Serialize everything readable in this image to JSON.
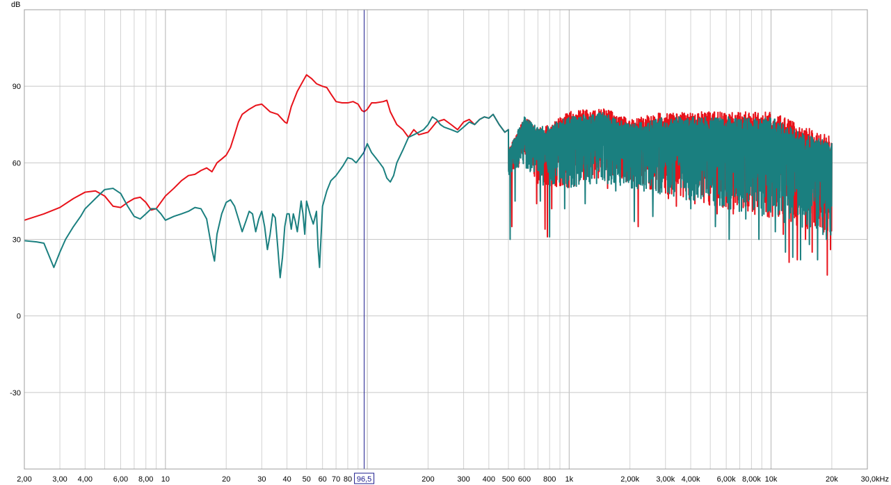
{
  "chart_data": {
    "type": "line",
    "title": "",
    "xlabel": "",
    "ylabel": "dB",
    "x_scale": "log",
    "xlim": [
      2,
      30000
    ],
    "ylim": [
      -60,
      120
    ],
    "grid": true,
    "x_ticks": [
      {
        "value": 2,
        "label": "2,00"
      },
      {
        "value": 3,
        "label": "3,00"
      },
      {
        "value": 4,
        "label": "4,00"
      },
      {
        "value": 6,
        "label": "6,00"
      },
      {
        "value": 8,
        "label": "8,00"
      },
      {
        "value": 10,
        "label": "10"
      },
      {
        "value": 20,
        "label": "20"
      },
      {
        "value": 30,
        "label": "30"
      },
      {
        "value": 40,
        "label": "40"
      },
      {
        "value": 50,
        "label": "50"
      },
      {
        "value": 60,
        "label": "60"
      },
      {
        "value": 70,
        "label": "70"
      },
      {
        "value": 80,
        "label": "80"
      },
      {
        "value": 200,
        "label": "200"
      },
      {
        "value": 300,
        "label": "300"
      },
      {
        "value": 400,
        "label": "400"
      },
      {
        "value": 500,
        "label": "500"
      },
      {
        "value": 600,
        "label": "600"
      },
      {
        "value": 800,
        "label": "800"
      },
      {
        "value": 1000,
        "label": "1k"
      },
      {
        "value": 2000,
        "label": "2,00k"
      },
      {
        "value": 3000,
        "label": "3,00k"
      },
      {
        "value": 4000,
        "label": "4,00k"
      },
      {
        "value": 6000,
        "label": "6,00k"
      },
      {
        "value": 8000,
        "label": "8,00k"
      },
      {
        "value": 10000,
        "label": "10k"
      },
      {
        "value": 20000,
        "label": "20k"
      },
      {
        "value": 30000,
        "label": "30,0kHz"
      }
    ],
    "y_ticks": [
      {
        "value": 90,
        "label": "90"
      },
      {
        "value": 60,
        "label": "60"
      },
      {
        "value": 30,
        "label": "30"
      },
      {
        "value": 0,
        "label": "0"
      },
      {
        "value": -30,
        "label": "-30"
      }
    ],
    "cursor": {
      "value": 96.5,
      "label": "96,5",
      "color": "#1a1a8c"
    },
    "series": [
      {
        "color": "#e8121a",
        "noise_from": 500,
        "points": [
          [
            2,
            37.5
          ],
          [
            2.5,
            40
          ],
          [
            3,
            42.5
          ],
          [
            3.5,
            46
          ],
          [
            4,
            48.5
          ],
          [
            4.5,
            49
          ],
          [
            5,
            47
          ],
          [
            5.5,
            43
          ],
          [
            6,
            42.5
          ],
          [
            6.5,
            44.5
          ],
          [
            7,
            46
          ],
          [
            7.5,
            46.5
          ],
          [
            8,
            44.5
          ],
          [
            8.5,
            41.5
          ],
          [
            9,
            42
          ],
          [
            10,
            47
          ],
          [
            11,
            50
          ],
          [
            12,
            53
          ],
          [
            13,
            55
          ],
          [
            14,
            55.5
          ],
          [
            15,
            57
          ],
          [
            16,
            58
          ],
          [
            17,
            56.5
          ],
          [
            18,
            60
          ],
          [
            19,
            61.5
          ],
          [
            20,
            63
          ],
          [
            21,
            66
          ],
          [
            22,
            71
          ],
          [
            23,
            76
          ],
          [
            24,
            79
          ],
          [
            26,
            81
          ],
          [
            28,
            82.5
          ],
          [
            30,
            83
          ],
          [
            33,
            80
          ],
          [
            36,
            79
          ],
          [
            39,
            76
          ],
          [
            40,
            75.5
          ],
          [
            42,
            82
          ],
          [
            45,
            88
          ],
          [
            48,
            92
          ],
          [
            50,
            94.5
          ],
          [
            53,
            93
          ],
          [
            56,
            91
          ],
          [
            60,
            90
          ],
          [
            63,
            89.5
          ],
          [
            66,
            87
          ],
          [
            70,
            84
          ],
          [
            75,
            83.5
          ],
          [
            80,
            83.5
          ],
          [
            85,
            84
          ],
          [
            90,
            83
          ],
          [
            94,
            80.5
          ],
          [
            96.5,
            80
          ],
          [
            100,
            81
          ],
          [
            105,
            83.5
          ],
          [
            110,
            83.5
          ],
          [
            120,
            84
          ],
          [
            125,
            84.5
          ],
          [
            130,
            80
          ],
          [
            140,
            75
          ],
          [
            150,
            73
          ],
          [
            160,
            70
          ],
          [
            170,
            73
          ],
          [
            180,
            71
          ],
          [
            200,
            72
          ],
          [
            210,
            74
          ],
          [
            220,
            76
          ],
          [
            240,
            77
          ],
          [
            260,
            75
          ],
          [
            280,
            73
          ],
          [
            300,
            76
          ],
          [
            320,
            77
          ],
          [
            340,
            75
          ],
          [
            360,
            77
          ],
          [
            380,
            78
          ],
          [
            400,
            77.5
          ],
          [
            420,
            79
          ],
          [
            450,
            75
          ],
          [
            480,
            72
          ],
          [
            500,
            73
          ]
        ],
        "noise_peaks": [
          [
            500,
            65
          ],
          [
            600,
            78
          ],
          [
            700,
            74
          ],
          [
            800,
            75
          ],
          [
            1000,
            80
          ],
          [
            1500,
            82
          ],
          [
            2000,
            77
          ],
          [
            3000,
            80
          ],
          [
            4000,
            80
          ],
          [
            6000,
            80
          ],
          [
            8000,
            80
          ],
          [
            10000,
            80
          ],
          [
            14000,
            75
          ],
          [
            20000,
            70
          ]
        ],
        "noise_floors": [
          [
            500,
            55
          ],
          [
            600,
            60
          ],
          [
            700,
            52
          ],
          [
            800,
            50
          ],
          [
            1000,
            50
          ],
          [
            1500,
            55
          ],
          [
            2000,
            52
          ],
          [
            3000,
            48
          ],
          [
            4000,
            45
          ],
          [
            6000,
            42
          ],
          [
            8000,
            40
          ],
          [
            10000,
            38
          ],
          [
            14000,
            35
          ],
          [
            20000,
            30
          ]
        ],
        "noise_dips": [
          [
            520,
            35
          ],
          [
            690,
            44
          ],
          [
            760,
            34
          ],
          [
            780,
            31
          ],
          [
            820,
            42
          ],
          [
            1550,
            50
          ],
          [
            2200,
            35
          ],
          [
            3100,
            46
          ],
          [
            3400,
            43
          ],
          [
            4200,
            44
          ],
          [
            5400,
            40
          ],
          [
            6500,
            40
          ],
          [
            8100,
            41
          ],
          [
            9600,
            39
          ],
          [
            11500,
            32
          ],
          [
            12300,
            21
          ],
          [
            13500,
            22
          ],
          [
            14800,
            30
          ],
          [
            16000,
            25
          ],
          [
            17500,
            35
          ],
          [
            19000,
            16
          ],
          [
            19700,
            26
          ]
        ]
      },
      {
        "color": "#1a7f7f",
        "noise_from": 500,
        "points": [
          [
            2,
            29.5
          ],
          [
            2.3,
            29
          ],
          [
            2.5,
            28.5
          ],
          [
            2.8,
            19
          ],
          [
            3,
            25
          ],
          [
            3.2,
            30
          ],
          [
            3.5,
            35
          ],
          [
            3.8,
            39
          ],
          [
            4,
            42
          ],
          [
            4.5,
            46
          ],
          [
            5,
            49.5
          ],
          [
            5.5,
            50
          ],
          [
            6,
            48
          ],
          [
            6.5,
            43
          ],
          [
            7,
            39
          ],
          [
            7.5,
            38
          ],
          [
            8,
            40
          ],
          [
            8.5,
            42
          ],
          [
            9,
            42
          ],
          [
            9.5,
            40
          ],
          [
            10,
            37.5
          ],
          [
            11,
            39
          ],
          [
            12,
            40
          ],
          [
            13,
            41
          ],
          [
            14,
            42.5
          ],
          [
            15,
            42
          ],
          [
            16,
            38
          ],
          [
            17,
            26
          ],
          [
            17.5,
            21.5
          ],
          [
            18,
            32
          ],
          [
            19,
            40
          ],
          [
            20,
            44.5
          ],
          [
            21,
            45.5
          ],
          [
            22,
            43
          ],
          [
            23,
            38
          ],
          [
            24,
            33
          ],
          [
            25,
            37
          ],
          [
            26,
            41
          ],
          [
            27,
            40
          ],
          [
            28,
            33
          ],
          [
            29,
            38
          ],
          [
            30,
            41
          ],
          [
            31,
            35
          ],
          [
            32,
            26
          ],
          [
            33,
            32
          ],
          [
            34,
            40
          ],
          [
            35,
            38.5
          ],
          [
            36,
            27
          ],
          [
            37,
            15
          ],
          [
            38,
            23
          ],
          [
            39,
            35
          ],
          [
            40,
            40
          ],
          [
            41,
            40
          ],
          [
            42,
            34
          ],
          [
            43,
            40
          ],
          [
            44,
            37
          ],
          [
            45,
            33
          ],
          [
            46,
            39
          ],
          [
            47,
            45
          ],
          [
            48,
            40
          ],
          [
            49,
            32
          ],
          [
            50,
            45
          ],
          [
            52,
            40
          ],
          [
            54,
            36
          ],
          [
            56,
            41
          ],
          [
            57,
            27
          ],
          [
            58,
            19
          ],
          [
            60,
            43
          ],
          [
            63,
            49
          ],
          [
            66,
            53
          ],
          [
            70,
            55
          ],
          [
            73,
            57
          ],
          [
            76,
            59
          ],
          [
            80,
            62
          ],
          [
            84,
            61.5
          ],
          [
            88,
            60
          ],
          [
            92,
            62
          ],
          [
            96,
            64
          ],
          [
            100,
            67.5
          ],
          [
            105,
            64
          ],
          [
            110,
            62
          ],
          [
            115,
            60
          ],
          [
            120,
            58
          ],
          [
            125,
            54
          ],
          [
            130,
            52.5
          ],
          [
            135,
            55
          ],
          [
            140,
            60
          ],
          [
            150,
            65
          ],
          [
            160,
            70
          ],
          [
            170,
            71
          ],
          [
            180,
            72
          ],
          [
            190,
            73
          ],
          [
            200,
            75
          ],
          [
            210,
            78
          ],
          [
            220,
            77
          ],
          [
            230,
            75
          ],
          [
            240,
            74
          ],
          [
            260,
            73
          ],
          [
            280,
            72
          ],
          [
            300,
            74
          ],
          [
            320,
            76
          ],
          [
            340,
            75
          ],
          [
            360,
            77
          ],
          [
            380,
            78
          ],
          [
            400,
            77.5
          ],
          [
            420,
            79
          ],
          [
            450,
            75
          ],
          [
            480,
            72
          ],
          [
            500,
            73
          ]
        ],
        "noise_peaks": [
          [
            500,
            65
          ],
          [
            600,
            78
          ],
          [
            700,
            74
          ],
          [
            800,
            75
          ],
          [
            1000,
            78
          ],
          [
            1500,
            80
          ],
          [
            2000,
            75
          ],
          [
            3000,
            78
          ],
          [
            4000,
            78
          ],
          [
            6000,
            78
          ],
          [
            8000,
            78
          ],
          [
            10000,
            78
          ],
          [
            14000,
            72
          ],
          [
            20000,
            68
          ]
        ],
        "noise_floors": [
          [
            500,
            55
          ],
          [
            600,
            58
          ],
          [
            700,
            52
          ],
          [
            800,
            50
          ],
          [
            1000,
            50
          ],
          [
            1500,
            52
          ],
          [
            2000,
            50
          ],
          [
            3000,
            47
          ],
          [
            4000,
            45
          ],
          [
            6000,
            42
          ],
          [
            8000,
            40
          ],
          [
            10000,
            38
          ],
          [
            14000,
            35
          ],
          [
            20000,
            30
          ]
        ],
        "noise_dips": [
          [
            510,
            30
          ],
          [
            540,
            45
          ],
          [
            720,
            45
          ],
          [
            800,
            31
          ],
          [
            950,
            42
          ],
          [
            1200,
            44
          ],
          [
            1700,
            49
          ],
          [
            2100,
            37
          ],
          [
            2600,
            39
          ],
          [
            3300,
            47
          ],
          [
            4000,
            42
          ],
          [
            4500,
            46
          ],
          [
            5300,
            35
          ],
          [
            6200,
            30
          ],
          [
            7500,
            38
          ],
          [
            8700,
            30
          ],
          [
            10500,
            33
          ],
          [
            11800,
            25
          ],
          [
            12800,
            23
          ],
          [
            14000,
            22
          ],
          [
            15500,
            28
          ],
          [
            17000,
            22
          ],
          [
            18800,
            30
          ],
          [
            19600,
            33
          ]
        ]
      }
    ]
  }
}
